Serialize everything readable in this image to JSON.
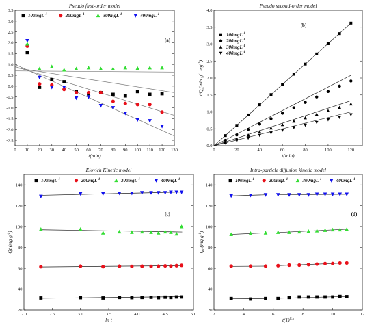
{
  "chart_data": [
    {
      "type": "scatter",
      "title": "Pseudo first-order model",
      "xlabel": "t(min)",
      "ylabel": "",
      "panel_label": "(a)",
      "xlim": [
        0,
        130
      ],
      "ylim": [
        -2.75,
        3.5
      ],
      "xticks": [
        0,
        10,
        20,
        30,
        40,
        50,
        60,
        70,
        80,
        90,
        100,
        110,
        120,
        130
      ],
      "yticks": [
        -2.5,
        -2.0,
        -1.5,
        -1.0,
        -0.5,
        0.0,
        0.5,
        1.0,
        1.5,
        2.0,
        2.5,
        3.0,
        3.5
      ],
      "legend_position": "top",
      "grid": false,
      "x": [
        10,
        20,
        30,
        40,
        50,
        60,
        70,
        80,
        90,
        100,
        110,
        120
      ],
      "series": [
        {
          "name": "100mgL-1",
          "marker": "square",
          "color": "#000000",
          "values": [
            1.55,
            -0.05,
            0.3,
            0.2,
            -0.25,
            -0.35,
            -0.3,
            -0.38,
            -0.45,
            -0.25,
            -0.38,
            -0.35
          ],
          "fit": [
            0.85,
            -0.3
          ]
        },
        {
          "name": "200mgL-1",
          "marker": "circle",
          "color": "#e8101a",
          "values": [
            1.85,
            0.1,
            0.05,
            -0.15,
            -0.3,
            -0.3,
            -0.3,
            -0.7,
            -0.8,
            -0.85,
            -0.85,
            -1.2
          ],
          "fit": [
            0.9,
            -1.35
          ]
        },
        {
          "name": "300mgL-1",
          "marker": "triangle-up",
          "color": "#33dd33",
          "values": [
            1.95,
            0.8,
            0.9,
            0.75,
            0.8,
            0.85,
            0.8,
            0.8,
            0.85,
            0.82,
            0.85,
            0.85
          ],
          "fit": [
            0.7,
            0.65
          ]
        },
        {
          "name": "400mgL-1",
          "marker": "triangle-down",
          "color": "#1010ee",
          "values": [
            2.1,
            0.4,
            -0.05,
            -0.05,
            -0.55,
            -0.5,
            -0.9,
            -1.0,
            -1.25,
            -1.55,
            -1.6,
            -1.85
          ],
          "fit": [
            1.0,
            -2.3
          ]
        }
      ]
    },
    {
      "type": "scatter",
      "title": "Pseudo second-order model",
      "xlabel": "t(min)",
      "ylabel": "t/Qt(min g-1 mg-1)",
      "panel_label": "(b)",
      "xlim": [
        0,
        130
      ],
      "ylim": [
        0,
        4.0
      ],
      "xticks": [
        0,
        20,
        40,
        60,
        80,
        100,
        120
      ],
      "yticks": [
        0.0,
        0.5,
        1.0,
        1.5,
        2.0,
        2.5,
        3.0,
        3.5,
        4.0
      ],
      "legend_position": "top-left",
      "grid": false,
      "x": [
        10,
        20,
        30,
        40,
        50,
        60,
        70,
        80,
        90,
        100,
        110,
        120
      ],
      "series": [
        {
          "name": "100mgL-1",
          "marker": "square",
          "color": "#000000",
          "values": [
            0.3,
            0.6,
            0.91,
            1.21,
            1.51,
            1.81,
            2.11,
            2.41,
            2.71,
            3.01,
            3.31,
            3.62
          ],
          "fit": [
            0,
            3.62
          ]
        },
        {
          "name": "200mgL-1",
          "marker": "circle",
          "color": "#000000",
          "values": [
            0.16,
            0.32,
            0.48,
            0.64,
            0.8,
            0.96,
            1.12,
            1.28,
            1.44,
            1.6,
            1.76,
            1.91
          ],
          "fit": [
            0,
            2.08
          ]
        },
        {
          "name": "300mgL-1",
          "marker": "triangle-up",
          "color": "#000000",
          "values": [
            0.1,
            0.21,
            0.31,
            0.41,
            0.52,
            0.62,
            0.72,
            0.82,
            0.93,
            1.03,
            1.13,
            1.23
          ],
          "fit": [
            0,
            1.33
          ]
        },
        {
          "name": "400mgL-1",
          "marker": "triangle-down",
          "color": "#000000",
          "values": [
            0.08,
            0.15,
            0.23,
            0.31,
            0.38,
            0.46,
            0.54,
            0.61,
            0.69,
            0.77,
            0.84,
            0.92
          ],
          "fit": [
            0,
            1.0
          ]
        }
      ]
    },
    {
      "type": "scatter",
      "title": "Elovich Kinetic model",
      "xlabel": "ln t",
      "ylabel": "Qt (mg g-1)",
      "panel_label": "(c)",
      "xlim": [
        2.0,
        5.0
      ],
      "ylim": [
        20,
        150
      ],
      "xticks": [
        2.0,
        2.5,
        3.0,
        3.5,
        4.0,
        4.5,
        5.0
      ],
      "yticks": [
        20,
        40,
        60,
        80,
        100,
        120,
        140
      ],
      "legend_position": "top",
      "grid": false,
      "x": [
        2.3,
        3.0,
        3.4,
        3.69,
        3.91,
        4.09,
        4.25,
        4.38,
        4.5,
        4.6,
        4.7,
        4.79
      ],
      "series": [
        {
          "name": "100mgL-1",
          "marker": "square",
          "color": "#000000",
          "values": [
            31.5,
            31.8,
            31.5,
            32.0,
            31.8,
            32.0,
            32.2,
            31.8,
            32.3,
            32.0,
            32.5,
            32.5
          ],
          "fit": [
            31.2,
            32.8
          ]
        },
        {
          "name": "200mgL-1",
          "marker": "circle",
          "color": "#e8101a",
          "values": [
            61.5,
            62.0,
            61.5,
            62.0,
            61.8,
            62.0,
            61.8,
            62.0,
            62.3,
            62.0,
            62.5,
            62.8
          ],
          "fit": [
            61.3,
            62.5
          ]
        },
        {
          "name": "300mgL-1",
          "marker": "triangle-up",
          "color": "#33dd33",
          "values": [
            97.5,
            97.5,
            94.0,
            95.0,
            94.5,
            95.0,
            94.5,
            94.0,
            95.0,
            94.5,
            93.0,
            100.0
          ],
          "fit": [
            97.0,
            94.8
          ]
        },
        {
          "name": "400mgL-1",
          "marker": "triangle-down",
          "color": "#1010ee",
          "values": [
            129.0,
            131.5,
            131.5,
            132.0,
            132.0,
            132.5,
            132.5,
            132.5,
            132.5,
            133.0,
            133.0,
            133.0
          ],
          "fit": [
            130.0,
            133.2
          ]
        }
      ]
    },
    {
      "type": "scatter",
      "title": "Intra-particle diffusion kinetic model",
      "xlabel": "t(1)0.5",
      "ylabel": "Qt (mg g-1)",
      "panel_label": "(d)",
      "xlim": [
        2,
        12
      ],
      "ylim": [
        20,
        150
      ],
      "xticks": [
        2,
        4,
        6,
        8,
        10,
        12
      ],
      "yticks": [
        20,
        40,
        60,
        80,
        100,
        120,
        140
      ],
      "legend_position": "top",
      "grid": false,
      "x": [
        3.16,
        4.47,
        5.48,
        6.32,
        7.07,
        7.75,
        8.37,
        8.94,
        9.49,
        10.0,
        10.49,
        10.95
      ],
      "series": [
        {
          "name": "100mgL-1",
          "marker": "square",
          "color": "#000000",
          "values": [
            31.0,
            30.5,
            31.0,
            31.0,
            32.0,
            32.5,
            32.5,
            32.5,
            32.5,
            32.5,
            33.0,
            32.8
          ],
          "segments": [
            [
              3.16,
              31.0,
              5.48,
              30.8
            ],
            [
              6.32,
              31.2,
              10.95,
              33.0
            ]
          ]
        },
        {
          "name": "200mgL-1",
          "marker": "circle",
          "color": "#e8101a",
          "values": [
            62.0,
            62.0,
            62.0,
            62.5,
            63.0,
            63.0,
            63.5,
            64.0,
            64.5,
            64.5,
            65.0,
            65.0
          ],
          "segments": [
            [
              3.16,
              61.8,
              5.48,
              62.0
            ],
            [
              6.32,
              62.5,
              10.95,
              65.0
            ]
          ]
        },
        {
          "name": "300mgL-1",
          "marker": "triangle-up",
          "color": "#33dd33",
          "values": [
            92.5,
            93.5,
            94.0,
            94.5,
            94.5,
            95.0,
            95.5,
            96.0,
            96.5,
            97.0,
            97.0,
            97.5
          ],
          "segments": [
            [
              3.16,
              92.5,
              5.48,
              94.0
            ],
            [
              6.32,
              94.3,
              10.95,
              97.5
            ]
          ]
        },
        {
          "name": "400mgL-1",
          "marker": "triangle-down",
          "color": "#1010ee",
          "values": [
            129.5,
            130.0,
            130.5,
            130.5,
            130.5,
            130.5,
            130.5,
            131.0,
            131.0,
            131.0,
            131.0,
            131.0
          ],
          "segments": [
            [
              3.16,
              129.5,
              5.48,
              130.5
            ],
            [
              6.32,
              130.5,
              10.95,
              131.0
            ]
          ]
        }
      ]
    }
  ]
}
